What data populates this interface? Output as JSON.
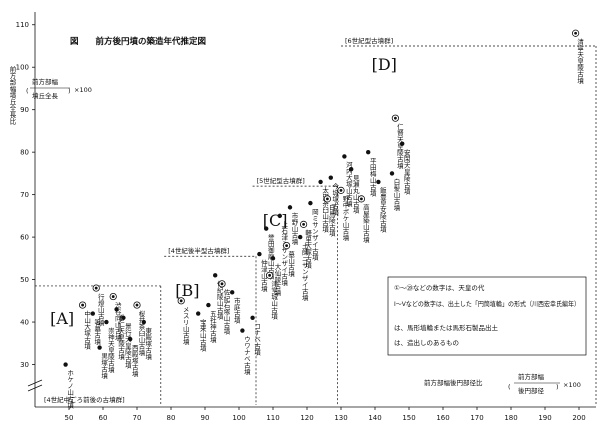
{
  "page": {
    "title": "図　　前方後円墳の築造年代推定図"
  },
  "chart_data": {
    "type": "scatter",
    "title": "図　　前方後円墳の築造年代推定図",
    "xlabel": "前方部幅後円部径比",
    "ylabel": "前方部幅墳丘全長比",
    "y_formula": {
      "numerator": "前方部幅",
      "denominator": "墳丘全長",
      "factor": "×100"
    },
    "x_formula": {
      "numerator": "前方部幅",
      "denominator": "後円部径",
      "factor": "×100"
    },
    "xlim": [
      40,
      205
    ],
    "ylim": [
      20,
      113
    ],
    "xticks": [
      50,
      60,
      70,
      80,
      90,
      100,
      110,
      120,
      130,
      140,
      150,
      160,
      170,
      180,
      190,
      200
    ],
    "yticks": [
      30,
      40,
      50,
      60,
      70,
      80,
      90,
      100,
      110
    ],
    "groups": [
      {
        "label": "[A]",
        "caption": "",
        "x_range": [
          40,
          77
        ],
        "y_range": [
          20,
          48.5
        ]
      },
      {
        "label": "[B]",
        "caption": "[4世紀後半型古墳群]",
        "x_range": [
          78,
          105
        ],
        "y_range": [
          20,
          55.5
        ]
      },
      {
        "label": "[C]",
        "caption": "[5世紀型古墳群]",
        "x_range": [
          104,
          129
        ],
        "y_range": [
          20,
          72
        ]
      },
      {
        "label": "[D]",
        "caption": "[6世紀型古墳群]",
        "x_range": [
          130,
          205
        ],
        "y_range": [
          20,
          105
        ]
      }
    ],
    "bottom_caption": "[4世紀中ごろ前後の古墳群]",
    "series": [
      {
        "marker": "dot",
        "points": [
          {
            "x": 49,
            "y": 30,
            "label": "ホケノ山古墳"
          },
          {
            "x": 57,
            "y": 42,
            "label": "箸墓古墳"
          },
          {
            "x": 59,
            "y": 34,
            "label": "黒塚古墳"
          },
          {
            "x": 61,
            "y": 40,
            "label": "崇神天皇陵古墳"
          },
          {
            "x": 64,
            "y": 43,
            "label": "垂仁天皇陵古墳"
          },
          {
            "x": 66,
            "y": 41,
            "label": "景行天皇陵古墳"
          },
          {
            "x": 68,
            "y": 36,
            "label": "西殿塚古墳"
          },
          {
            "x": 72,
            "y": 40,
            "label": "東殿塚古墳"
          },
          {
            "x": 88,
            "y": 42,
            "label": "宝来山古墳"
          },
          {
            "x": 91,
            "y": 44,
            "label": "五社神古墳"
          },
          {
            "x": 93,
            "y": 51,
            "label": "佐紀陵山古墳"
          },
          {
            "x": 98,
            "y": 47,
            "label": "市庭古墳"
          },
          {
            "x": 101,
            "y": 38,
            "label": "ウワナベ古墳"
          },
          {
            "x": 104,
            "y": 41,
            "label": "コナベ古墳"
          },
          {
            "x": 106,
            "y": 56,
            "label": "仲津山古墳"
          },
          {
            "x": 108,
            "y": 62,
            "label": "誉田御廟山古墳"
          },
          {
            "x": 110,
            "y": 55,
            "label": "大仙陵古墳"
          },
          {
            "x": 112,
            "y": 65,
            "label": "上石津ミサンザイ古墳"
          },
          {
            "x": 115,
            "y": 67,
            "label": "市野山古墳"
          },
          {
            "x": 118,
            "y": 60,
            "label": "土師ニサンザイ古墳"
          },
          {
            "x": 121,
            "y": 68,
            "label": "岡ミサンザイ古墳"
          },
          {
            "x": 124,
            "y": 73,
            "label": "太田茶臼山古墳"
          },
          {
            "x": 127,
            "y": 74,
            "label": "今城塚古墳"
          },
          {
            "x": 131,
            "y": 79,
            "label": "河内大塚山古墳"
          },
          {
            "x": 133,
            "y": 76,
            "label": "見瀬丸山古墳"
          },
          {
            "x": 138,
            "y": 80,
            "label": "平田梅山古墳"
          },
          {
            "x": 141,
            "y": 73,
            "label": "飯豊皇女陵古墳"
          },
          {
            "x": 145,
            "y": 75,
            "label": "白髪山古墳"
          },
          {
            "x": 148,
            "y": 82,
            "label": "安閑天皇陵古墳"
          }
        ]
      },
      {
        "marker": "double-circle",
        "points": [
          {
            "x": 54,
            "y": 44,
            "label": "中山大塚古墳"
          },
          {
            "x": 58,
            "y": 48,
            "label": "行燈山古墳"
          },
          {
            "x": 63,
            "y": 46,
            "label": "渋谷向山古墳"
          },
          {
            "x": 70,
            "y": 44,
            "label": "桜井茶臼山古墳"
          },
          {
            "x": 83,
            "y": 45,
            "label": "メスリ山古墳"
          },
          {
            "x": 95,
            "y": 49,
            "label": "佐紀石塚山古墳"
          },
          {
            "x": 109,
            "y": 51,
            "label": "津堂城山古墳"
          },
          {
            "x": 114,
            "y": 58,
            "label": "墓山古墳"
          },
          {
            "x": 119,
            "y": 63,
            "label": "軽里大塚古墳"
          },
          {
            "x": 126,
            "y": 69,
            "label": "白鳥陵古墳"
          },
          {
            "x": 130,
            "y": 71,
            "label": "野中ボケ山古墳"
          },
          {
            "x": 136,
            "y": 69,
            "label": "高屋築山古墳"
          },
          {
            "x": 146,
            "y": 88,
            "label": "仁賢天皇陵古墳"
          },
          {
            "x": 199,
            "y": 108,
            "label": "清寧天皇陵古墳"
          }
        ]
      }
    ],
    "legend": [
      {
        "symbol": "①〜⑳",
        "text": "①〜⑳などの数字は、天皇の代"
      },
      {
        "symbol": "Ⅰ〜Ⅴ",
        "text": "Ⅰ〜Ⅴなどの数字は、出土した「円筒埴輪」の形式（川西宏幸氏編年）"
      },
      {
        "symbol": "◎",
        "text": "は、馬形埴輪または馬形石製品出土"
      },
      {
        "symbol": "◉",
        "text": "は、造出しのあるもの"
      }
    ]
  }
}
